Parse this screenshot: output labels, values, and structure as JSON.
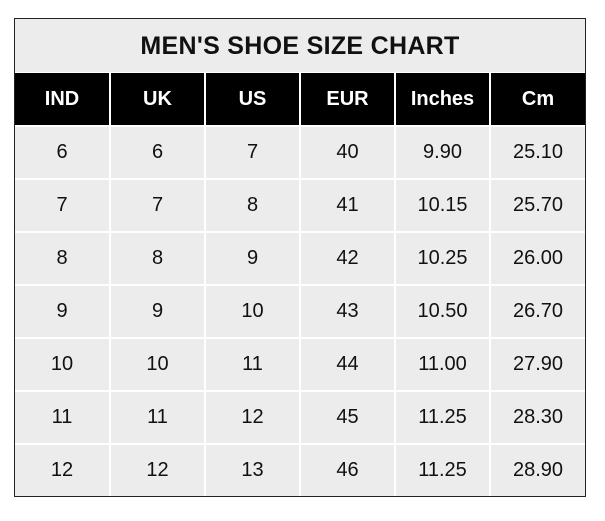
{
  "title": "MEN'S SHOE SIZE CHART",
  "columns": [
    "IND",
    "UK",
    "US",
    "EUR",
    "Inches",
    "Cm"
  ],
  "rows": [
    [
      "6",
      "6",
      "7",
      "40",
      "9.90",
      "25.10"
    ],
    [
      "7",
      "7",
      "8",
      "41",
      "10.15",
      "25.70"
    ],
    [
      "8",
      "8",
      "9",
      "42",
      "10.25",
      "26.00"
    ],
    [
      "9",
      "9",
      "10",
      "43",
      "10.50",
      "26.70"
    ],
    [
      "10",
      "10",
      "11",
      "44",
      "11.00",
      "27.90"
    ],
    [
      "11",
      "11",
      "12",
      "45",
      "11.25",
      "28.30"
    ],
    [
      "12",
      "12",
      "13",
      "46",
      "11.25",
      "28.90"
    ]
  ],
  "colors": {
    "header_bg": "#000000",
    "body_bg": "#ececec",
    "grid": "#ffffff"
  }
}
